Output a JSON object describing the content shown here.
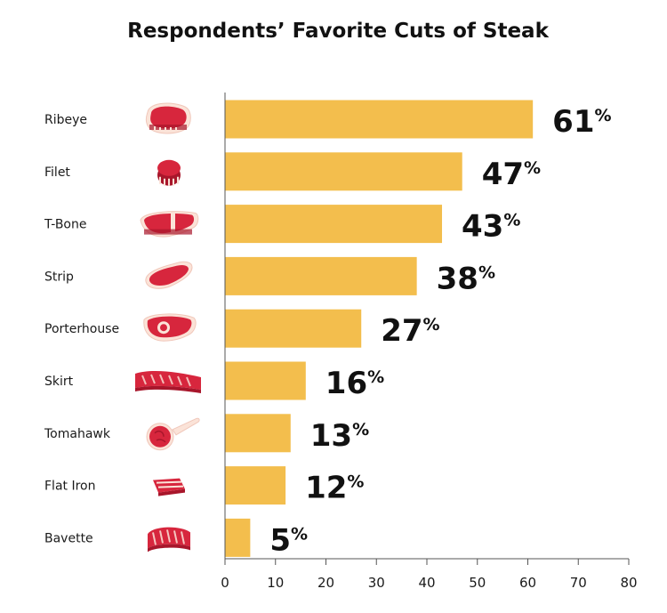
{
  "chart_data": {
    "type": "bar",
    "orientation": "horizontal",
    "title": "Respondents’ Favorite Cuts of Steak",
    "categories": [
      "Ribeye",
      "Filet",
      "T-Bone",
      "Strip",
      "Porterhouse",
      "Skirt",
      "Tomahawk",
      "Flat Iron",
      "Bavette"
    ],
    "values": [
      61,
      47,
      43,
      38,
      27,
      16,
      13,
      12,
      5
    ],
    "value_suffix": "%",
    "xlim": [
      0,
      80
    ],
    "xticks": [
      0,
      10,
      20,
      30,
      40,
      50,
      60,
      70,
      80
    ],
    "xlabel": "",
    "ylabel": "",
    "grid": false,
    "colors": {
      "bar": "#F3BE4D",
      "axis": "#555555",
      "meat": "#D7263D",
      "meat_dark": "#A8162B",
      "fat": "#FBE3D8",
      "fat_edge": "#F0C7BA"
    },
    "icons": [
      "ribeye-steak-icon",
      "filet-steak-icon",
      "t-bone-steak-icon",
      "strip-steak-icon",
      "porterhouse-steak-icon",
      "skirt-steak-icon",
      "tomahawk-steak-icon",
      "flat-iron-steak-icon",
      "bavette-steak-icon"
    ]
  }
}
